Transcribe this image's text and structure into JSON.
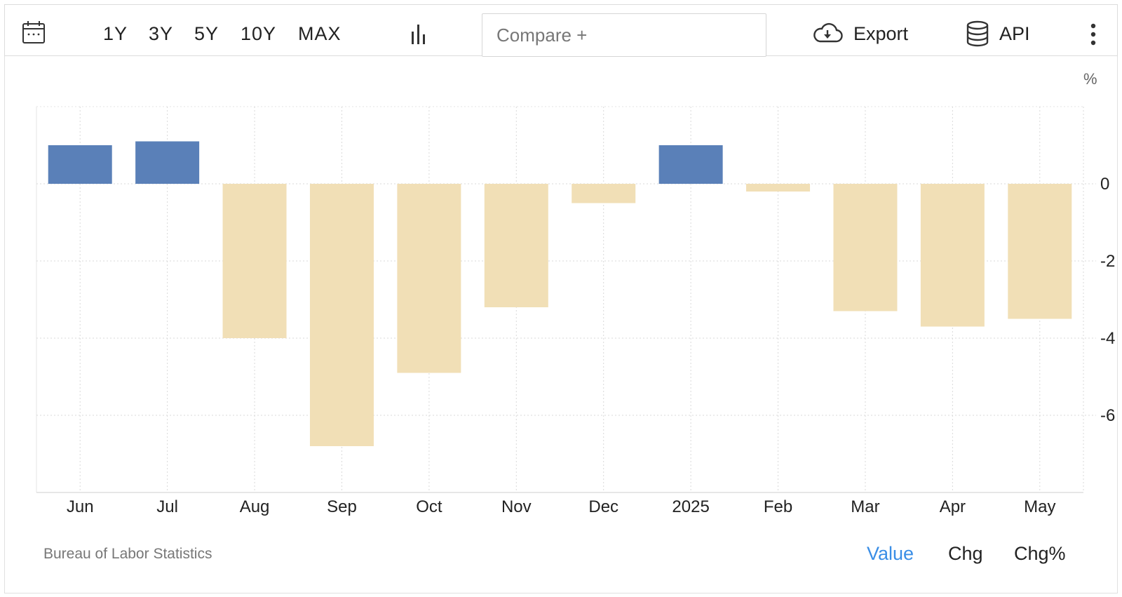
{
  "toolbar": {
    "calendar_icon": "calendar-icon",
    "ranges": [
      "1Y",
      "3Y",
      "5Y",
      "10Y",
      "MAX"
    ],
    "chart_type_icon": "bar-chart-icon",
    "compare_placeholder": "Compare +",
    "export_label": "Export",
    "export_icon": "cloud-download-icon",
    "api_label": "API",
    "api_icon": "database-icon",
    "more_icon": "vertical-ellipsis-icon"
  },
  "unit": "%",
  "source": "Bureau of Labor Statistics",
  "footer_tabs": {
    "value": "Value",
    "chg": "Chg",
    "chgpct": "Chg%",
    "active": "value"
  },
  "colors": {
    "positive": "#5a80b8",
    "negative": "#f1dfb6",
    "active_tab": "#3a8ee6",
    "grid": "#d9d9d9"
  },
  "chart_data": {
    "type": "bar",
    "title": "",
    "xlabel": "",
    "ylabel": "%",
    "categories": [
      "Jun",
      "Jul",
      "Aug",
      "Sep",
      "Oct",
      "Nov",
      "Dec",
      "2025",
      "Feb",
      "Mar",
      "Apr",
      "May"
    ],
    "values": [
      1.0,
      1.1,
      -4.0,
      -6.8,
      -4.9,
      -3.2,
      -0.5,
      1.0,
      -0.2,
      -3.3,
      -3.7,
      -3.5
    ],
    "ylim": [
      -8,
      2
    ],
    "yticks": [
      0,
      -2,
      -4,
      -6
    ],
    "grid": true,
    "legend": "none"
  }
}
